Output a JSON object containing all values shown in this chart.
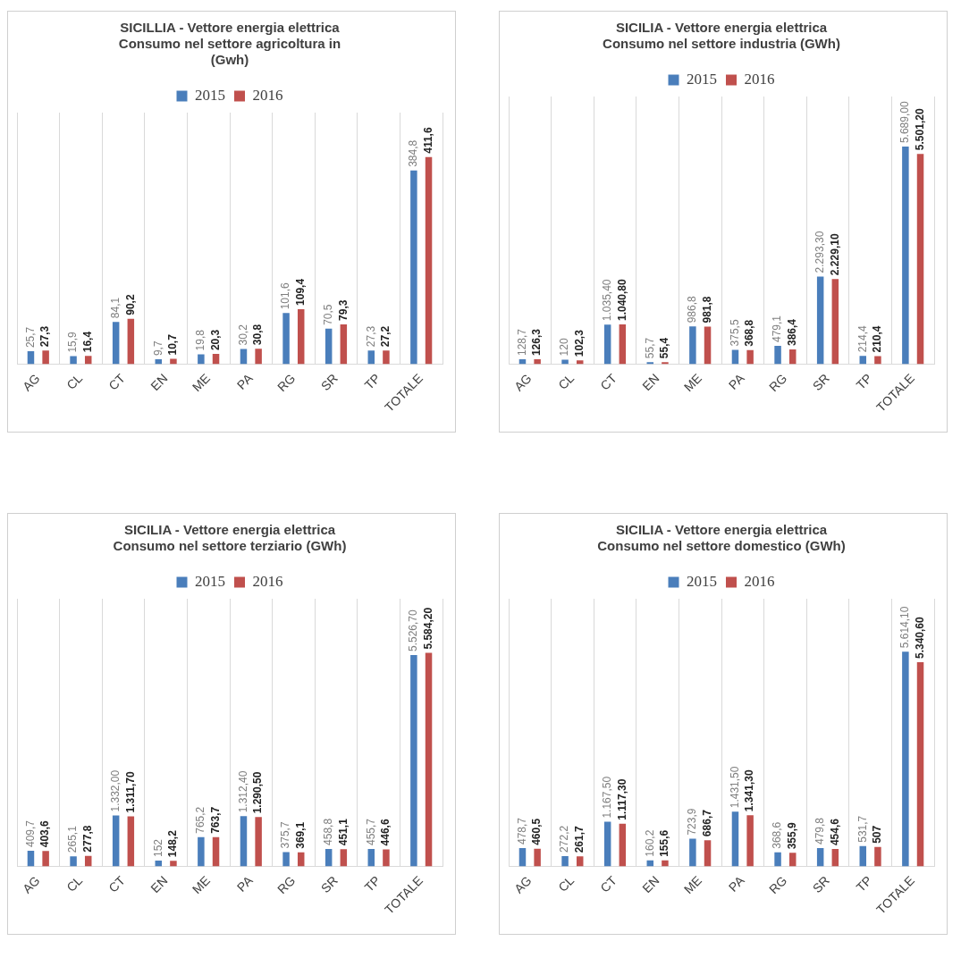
{
  "chart_data": [
    {
      "type": "bar",
      "title": "SICILLIA - Vettore energia elettrica\nConsumo nel settore agricoltura in\n(Gwh)",
      "categories": [
        "AG",
        "CL",
        "CT",
        "EN",
        "ME",
        "PA",
        "RG",
        "SR",
        "TP",
        "TOTALE"
      ],
      "legend": "top",
      "grid": "x",
      "series": [
        {
          "name": "2015",
          "color": "#4a7ebb",
          "values": [
            25.7,
            15.9,
            84.1,
            9.7,
            19.8,
            30.2,
            101.6,
            70.5,
            27.3,
            384.8
          ],
          "value_labels": [
            "25,7",
            "15,9",
            "84,1",
            "9,7",
            "19,8",
            "30,2",
            "101,6",
            "70,5",
            "27,3",
            "384,8"
          ]
        },
        {
          "name": "2016",
          "color": "#c0504d",
          "values": [
            27.3,
            16.4,
            90.2,
            10.7,
            20.3,
            30.8,
            109.4,
            79.3,
            27.2,
            411.6
          ],
          "value_labels": [
            "27,3",
            "16,4",
            "90,2",
            "10,7",
            "20,3",
            "30,8",
            "109,4",
            "79,3",
            "27,2",
            "411,6"
          ]
        }
      ]
    },
    {
      "type": "bar",
      "title": "SICILIA - Vettore energia elettrica\nConsumo nel settore industria (GWh)",
      "categories": [
        "AG",
        "CL",
        "CT",
        "EN",
        "ME",
        "PA",
        "RG",
        "SR",
        "TP",
        "TOTALE"
      ],
      "legend": "top",
      "grid": "x",
      "series": [
        {
          "name": "2015",
          "color": "#4a7ebb",
          "values": [
            128.7,
            120,
            1035.4,
            55.7,
            986.8,
            375.5,
            479.1,
            2293.3,
            214.4,
            5689.0
          ],
          "value_labels": [
            "128,7",
            "120",
            "1.035,40",
            "55,7",
            "986,8",
            "375,5",
            "479,1",
            "2.293,30",
            "214,4",
            "5.689,00"
          ]
        },
        {
          "name": "2016",
          "color": "#c0504d",
          "values": [
            126.3,
            102.3,
            1040.8,
            55.4,
            981.8,
            368.8,
            386.4,
            2229.1,
            210.4,
            5501.2
          ],
          "value_labels": [
            "126,3",
            "102,3",
            "1.040,80",
            "55,4",
            "981,8",
            "368,8",
            "386,4",
            "2.229,10",
            "210,4",
            "5.501,20"
          ]
        }
      ]
    },
    {
      "type": "bar",
      "title": "SICILIA - Vettore energia elettrica\nConsumo nel settore terziario (GWh)",
      "categories": [
        "AG",
        "CL",
        "CT",
        "EN",
        "ME",
        "PA",
        "RG",
        "SR",
        "TP",
        "TOTALE"
      ],
      "legend": "top",
      "grid": "x",
      "series": [
        {
          "name": "2015",
          "color": "#4a7ebb",
          "values": [
            409.7,
            265.1,
            1332.0,
            152,
            765.2,
            1312.4,
            375.7,
            458.8,
            455.7,
            5526.7
          ],
          "value_labels": [
            "409,7",
            "265,1",
            "1.332,00",
            "152",
            "765,2",
            "1.312,40",
            "375,7",
            "458,8",
            "455,7",
            "5.526,70"
          ]
        },
        {
          "name": "2016",
          "color": "#c0504d",
          "values": [
            403.6,
            277.8,
            1311.7,
            148.2,
            763.7,
            1290.5,
            369.1,
            451.1,
            446.6,
            5584.2
          ],
          "value_labels": [
            "403,6",
            "277,8",
            "1.311,70",
            "148,2",
            "763,7",
            "1.290,50",
            "369,1",
            "451,1",
            "446,6",
            "5.584,20"
          ]
        }
      ]
    },
    {
      "type": "bar",
      "title": "SICILIA - Vettore energia elettrica\nConsumo nel settore domestico (GWh)",
      "categories": [
        "AG",
        "CL",
        "CT",
        "EN",
        "ME",
        "PA",
        "RG",
        "SR",
        "TP",
        "TOTALE"
      ],
      "legend": "top",
      "grid": "x",
      "series": [
        {
          "name": "2015",
          "color": "#4a7ebb",
          "values": [
            478.7,
            272.2,
            1167.5,
            160.2,
            723.9,
            1431.5,
            368.6,
            479.8,
            531.7,
            5614.1
          ],
          "value_labels": [
            "478,7",
            "272,2",
            "1.167,50",
            "160,2",
            "723,9",
            "1.431,50",
            "368,6",
            "479,8",
            "531,7",
            "5.614,10"
          ]
        },
        {
          "name": "2016",
          "color": "#c0504d",
          "values": [
            460.5,
            261.7,
            1117.3,
            155.6,
            686.7,
            1341.3,
            355.9,
            454.6,
            507,
            5340.6
          ],
          "value_labels": [
            "460,5",
            "261,7",
            "1.117,30",
            "155,6",
            "686,7",
            "1.341,30",
            "355,9",
            "454,6",
            "507",
            "5.340,60"
          ]
        }
      ]
    }
  ]
}
